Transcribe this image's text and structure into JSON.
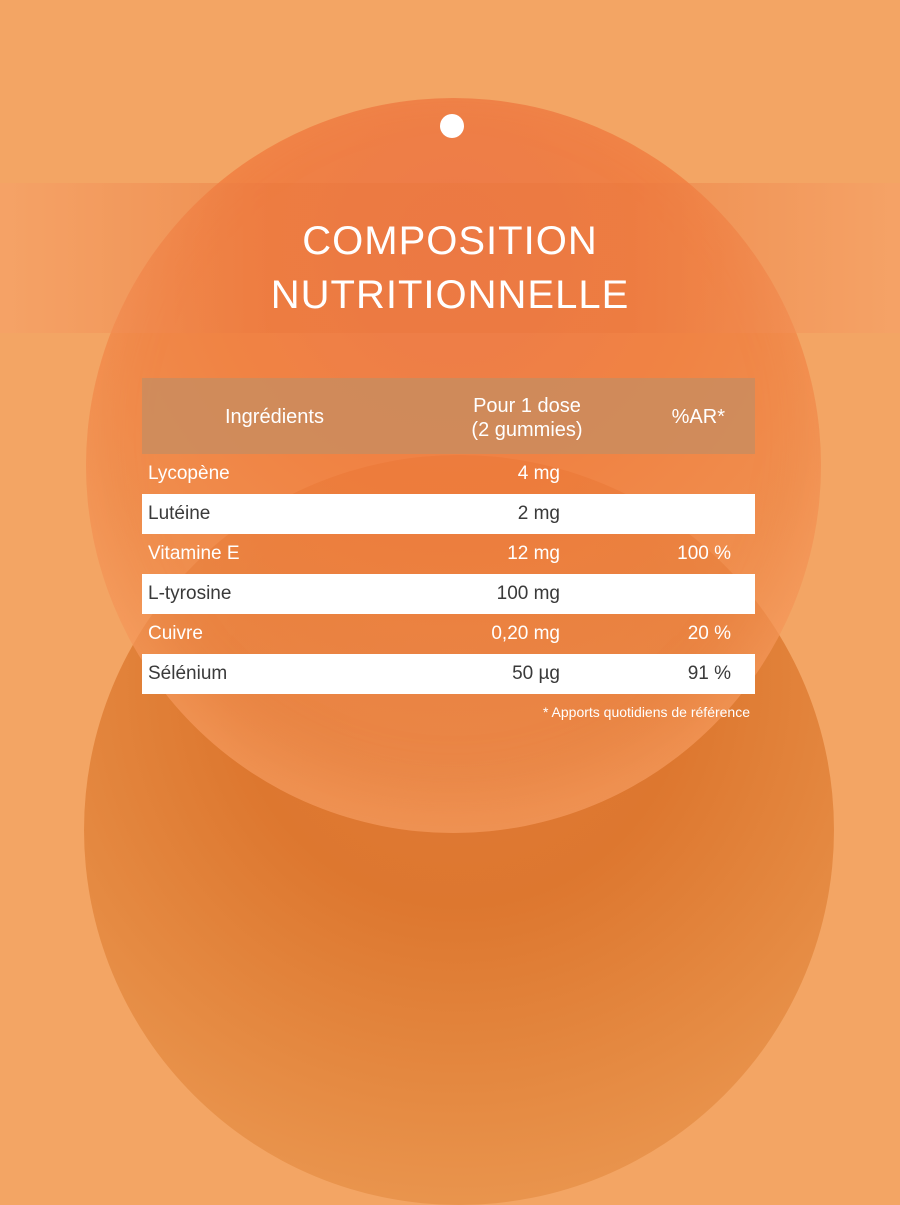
{
  "title": {
    "line1": "COMPOSITION",
    "line2": "NUTRITIONNELLE"
  },
  "table": {
    "headers": {
      "ingredients": "Ingrédients",
      "dose_line1": "Pour 1 dose",
      "dose_line2": "(2 gummies)",
      "ar": "%AR*"
    },
    "rows": [
      {
        "name": "Lycopène",
        "dose": "4 mg",
        "ar": ""
      },
      {
        "name": "Lutéine",
        "dose": "2 mg",
        "ar": ""
      },
      {
        "name": "Vitamine E",
        "dose": "12 mg",
        "ar": "100 %"
      },
      {
        "name": "L-tyrosine",
        "dose": "100 mg",
        "ar": ""
      },
      {
        "name": "Cuivre",
        "dose": "0,20 mg",
        "ar": "20 %"
      },
      {
        "name": "Sélénium",
        "dose": "50 µg",
        "ar": "91 %"
      }
    ]
  },
  "footnote": "* Apports quotidiens de référence",
  "colors": {
    "background": "#f3a564",
    "accent_orange": "#e07a38",
    "header_band": "#c88c5f",
    "text_light": "#ffffff",
    "text_dark": "#3a3a3a"
  }
}
